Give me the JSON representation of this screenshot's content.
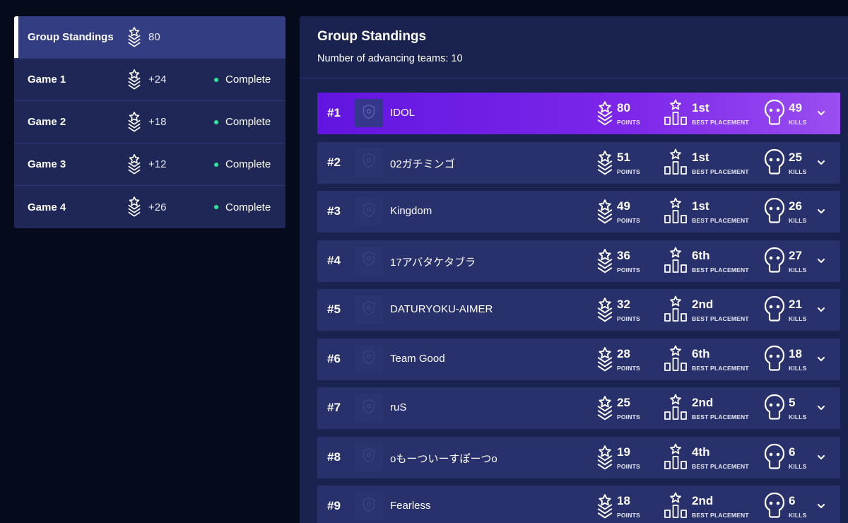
{
  "sidebar": {
    "items": [
      {
        "label": "Group Standings",
        "points": "80",
        "status": "",
        "active": true
      },
      {
        "label": "Game 1",
        "points": "+24",
        "status": "Complete",
        "active": false
      },
      {
        "label": "Game 2",
        "points": "+18",
        "status": "Complete",
        "active": false
      },
      {
        "label": "Game 3",
        "points": "+12",
        "status": "Complete",
        "active": false
      },
      {
        "label": "Game 4",
        "points": "+26",
        "status": "Complete",
        "active": false
      }
    ]
  },
  "main": {
    "title": "Group Standings",
    "subtitle": "Number of advancing teams: 10",
    "labels": {
      "points": "POINTS",
      "best_placement": "BEST PLACEMENT",
      "kills": "KILLS"
    },
    "teams": [
      {
        "rank": "#1",
        "name": "IDOL",
        "points": "80",
        "best_placement": "1st",
        "kills": "49"
      },
      {
        "rank": "#2",
        "name": "02ガチミンゴ",
        "points": "51",
        "best_placement": "1st",
        "kills": "25"
      },
      {
        "rank": "#3",
        "name": "Kingdom",
        "points": "49",
        "best_placement": "1st",
        "kills": "26"
      },
      {
        "rank": "#4",
        "name": "17アバタケタブラ",
        "points": "36",
        "best_placement": "6th",
        "kills": "27"
      },
      {
        "rank": "#5",
        "name": "DATURYOKU-AIMER",
        "points": "32",
        "best_placement": "2nd",
        "kills": "21"
      },
      {
        "rank": "#6",
        "name": "Team Good",
        "points": "28",
        "best_placement": "6th",
        "kills": "18"
      },
      {
        "rank": "#7",
        "name": "ruS",
        "points": "25",
        "best_placement": "2nd",
        "kills": "5"
      },
      {
        "rank": "#8",
        "name": "oもーついーすぽーつo",
        "points": "19",
        "best_placement": "4th",
        "kills": "6"
      },
      {
        "rank": "#9",
        "name": "Fearless",
        "points": "18",
        "best_placement": "2nd",
        "kills": "6"
      }
    ]
  },
  "colors": {
    "background": "#060b1c",
    "panel": "#1f2757",
    "row": "#28316b",
    "highlight": "#7d27ea",
    "status": "#2ee59d"
  },
  "icons": {
    "points": "rank-chevron-icon",
    "placement": "podium-icon",
    "kills": "skull-icon",
    "expand": "chevron-down-icon",
    "team_logo": "shield-icon"
  }
}
